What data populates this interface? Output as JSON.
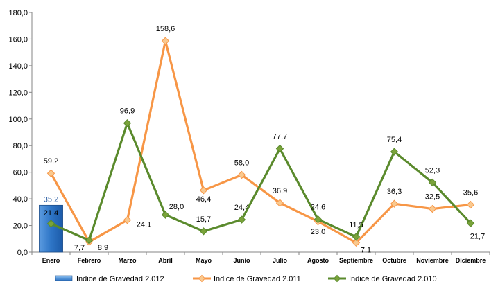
{
  "chart_data": {
    "type": "bar+line",
    "categories": [
      "Enero",
      "Febrero",
      "Marzo",
      "Abril",
      "Mayo",
      "Junio",
      "Julio",
      "Agosto",
      "Septiembre",
      "Octubre",
      "Noviembre",
      "Diciembre"
    ],
    "series": [
      {
        "name": "Indice de Gravedad 2.012",
        "kind": "bar",
        "color": "#2e75c6",
        "label_color": "#2e5fa3",
        "values": [
          35.2,
          null,
          null,
          null,
          null,
          null,
          null,
          null,
          null,
          null,
          null,
          null
        ],
        "labels": [
          "35,2"
        ]
      },
      {
        "name": "Indice de Gravedad 2.011",
        "kind": "line",
        "color": "#f79646",
        "marker_fill": "#f9c98f",
        "values": [
          59.2,
          7.7,
          24.1,
          158.6,
          46.4,
          58.0,
          36.9,
          23.0,
          7.1,
          36.3,
          32.5,
          35.6
        ],
        "labels": [
          "59,2",
          "7,7",
          "24,1",
          "158,6",
          "46,4",
          "58,0",
          "36,9",
          "23,0",
          "7,1",
          "36,3",
          "32,5",
          "35,6"
        ]
      },
      {
        "name": "Indice de Gravedad 2.010",
        "kind": "line",
        "color": "#5a8a2c",
        "marker_fill": "#7aa33a",
        "values": [
          21.4,
          8.9,
          96.9,
          28.0,
          15.7,
          24.4,
          77.7,
          24.6,
          11.5,
          75.4,
          52.3,
          21.7
        ],
        "labels": [
          "21,4",
          "8,9",
          "96,9",
          "28,0",
          "15,7",
          "24,4",
          "77,7",
          "24,6",
          "11,5",
          "75,4",
          "52,3",
          "21,7"
        ]
      }
    ],
    "y_ticks": [
      "0,0",
      "20,0",
      "40,0",
      "60,0",
      "80,0",
      "100,0",
      "120,0",
      "140,0",
      "160,0",
      "180,0"
    ],
    "ylim": [
      0,
      180
    ],
    "grid": false,
    "legend": "bottom"
  }
}
